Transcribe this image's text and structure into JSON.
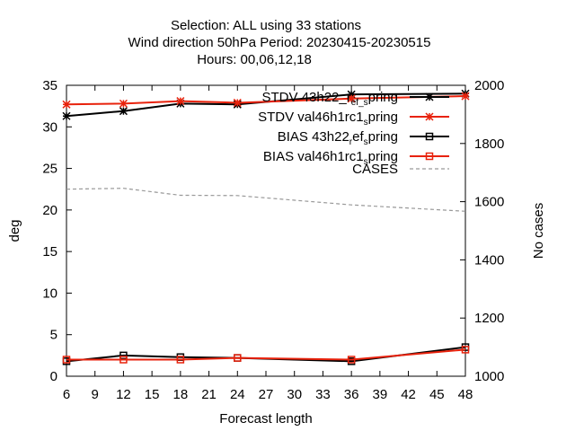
{
  "chart_data": {
    "type": "line",
    "title_lines": [
      "Selection: ALL using    33 stations",
      "Wind direction 50hPa   Period: 20230415-20230515",
      "Hours:  00,06,12,18"
    ],
    "xlabel": "Forecast length",
    "ylabel": "deg",
    "y2label": "No cases",
    "xlim": [
      6,
      48
    ],
    "ylim": [
      0,
      35
    ],
    "y2lim": [
      1000,
      2000
    ],
    "x_ticks": [
      6,
      9,
      12,
      15,
      18,
      21,
      24,
      27,
      30,
      33,
      36,
      39,
      42,
      45,
      48
    ],
    "y_ticks": [
      0,
      5,
      10,
      15,
      20,
      25,
      30,
      35
    ],
    "y2_ticks": [
      1000,
      1200,
      1400,
      1600,
      1800,
      2000
    ],
    "grid": false,
    "legend_position": "top-right",
    "series": [
      {
        "name": "STDV 43h22_ref_spring",
        "legend": "STDV 43h22_r",
        "legend_sub": "ef_s",
        "legend_tail": "pring",
        "axis": "y",
        "color": "#000000",
        "marker": "star",
        "dash": "",
        "x": [
          6,
          12,
          18,
          24,
          36,
          48
        ],
        "values": [
          31.3,
          31.9,
          32.8,
          32.7,
          33.9,
          34.0
        ]
      },
      {
        "name": "STDV val46h1rc1_spring",
        "legend": "STDV val46h1rc1",
        "legend_sub": "s",
        "legend_tail": "pring",
        "axis": "y",
        "color": "#e8220c",
        "marker": "star",
        "dash": "",
        "x": [
          6,
          12,
          18,
          24,
          36,
          48
        ],
        "values": [
          32.7,
          32.8,
          33.1,
          32.9,
          33.4,
          33.7
        ]
      },
      {
        "name": "BIAS 43h22_ref_spring",
        "legend": "BIAS 43h22",
        "legend_sub": "r",
        "legend_tail": "ef",
        "legend_sub2": "s",
        "legend_tail2": "pring",
        "axis": "y",
        "color": "#000000",
        "marker": "square",
        "dash": "",
        "x": [
          6,
          12,
          18,
          24,
          36,
          48
        ],
        "values": [
          1.8,
          2.5,
          2.3,
          2.2,
          1.8,
          3.5
        ]
      },
      {
        "name": "BIAS val46h1rc1_spring",
        "legend": "BIAS val46h1rc1",
        "legend_sub": "s",
        "legend_tail": "pring",
        "axis": "y",
        "color": "#e8220c",
        "marker": "square",
        "dash": "",
        "x": [
          6,
          12,
          18,
          24,
          36,
          48
        ],
        "values": [
          2.0,
          2.0,
          2.0,
          2.2,
          2.0,
          3.2
        ]
      },
      {
        "name": "CASES",
        "legend": "CASES",
        "legend_sub": "",
        "legend_tail": "",
        "axis": "y2",
        "color": "#999999",
        "marker": "none",
        "dash": "4,3",
        "x": [
          6,
          12,
          18,
          24,
          36,
          48
        ],
        "values": [
          1643,
          1646,
          1622,
          1621,
          1589,
          1567
        ]
      }
    ]
  }
}
